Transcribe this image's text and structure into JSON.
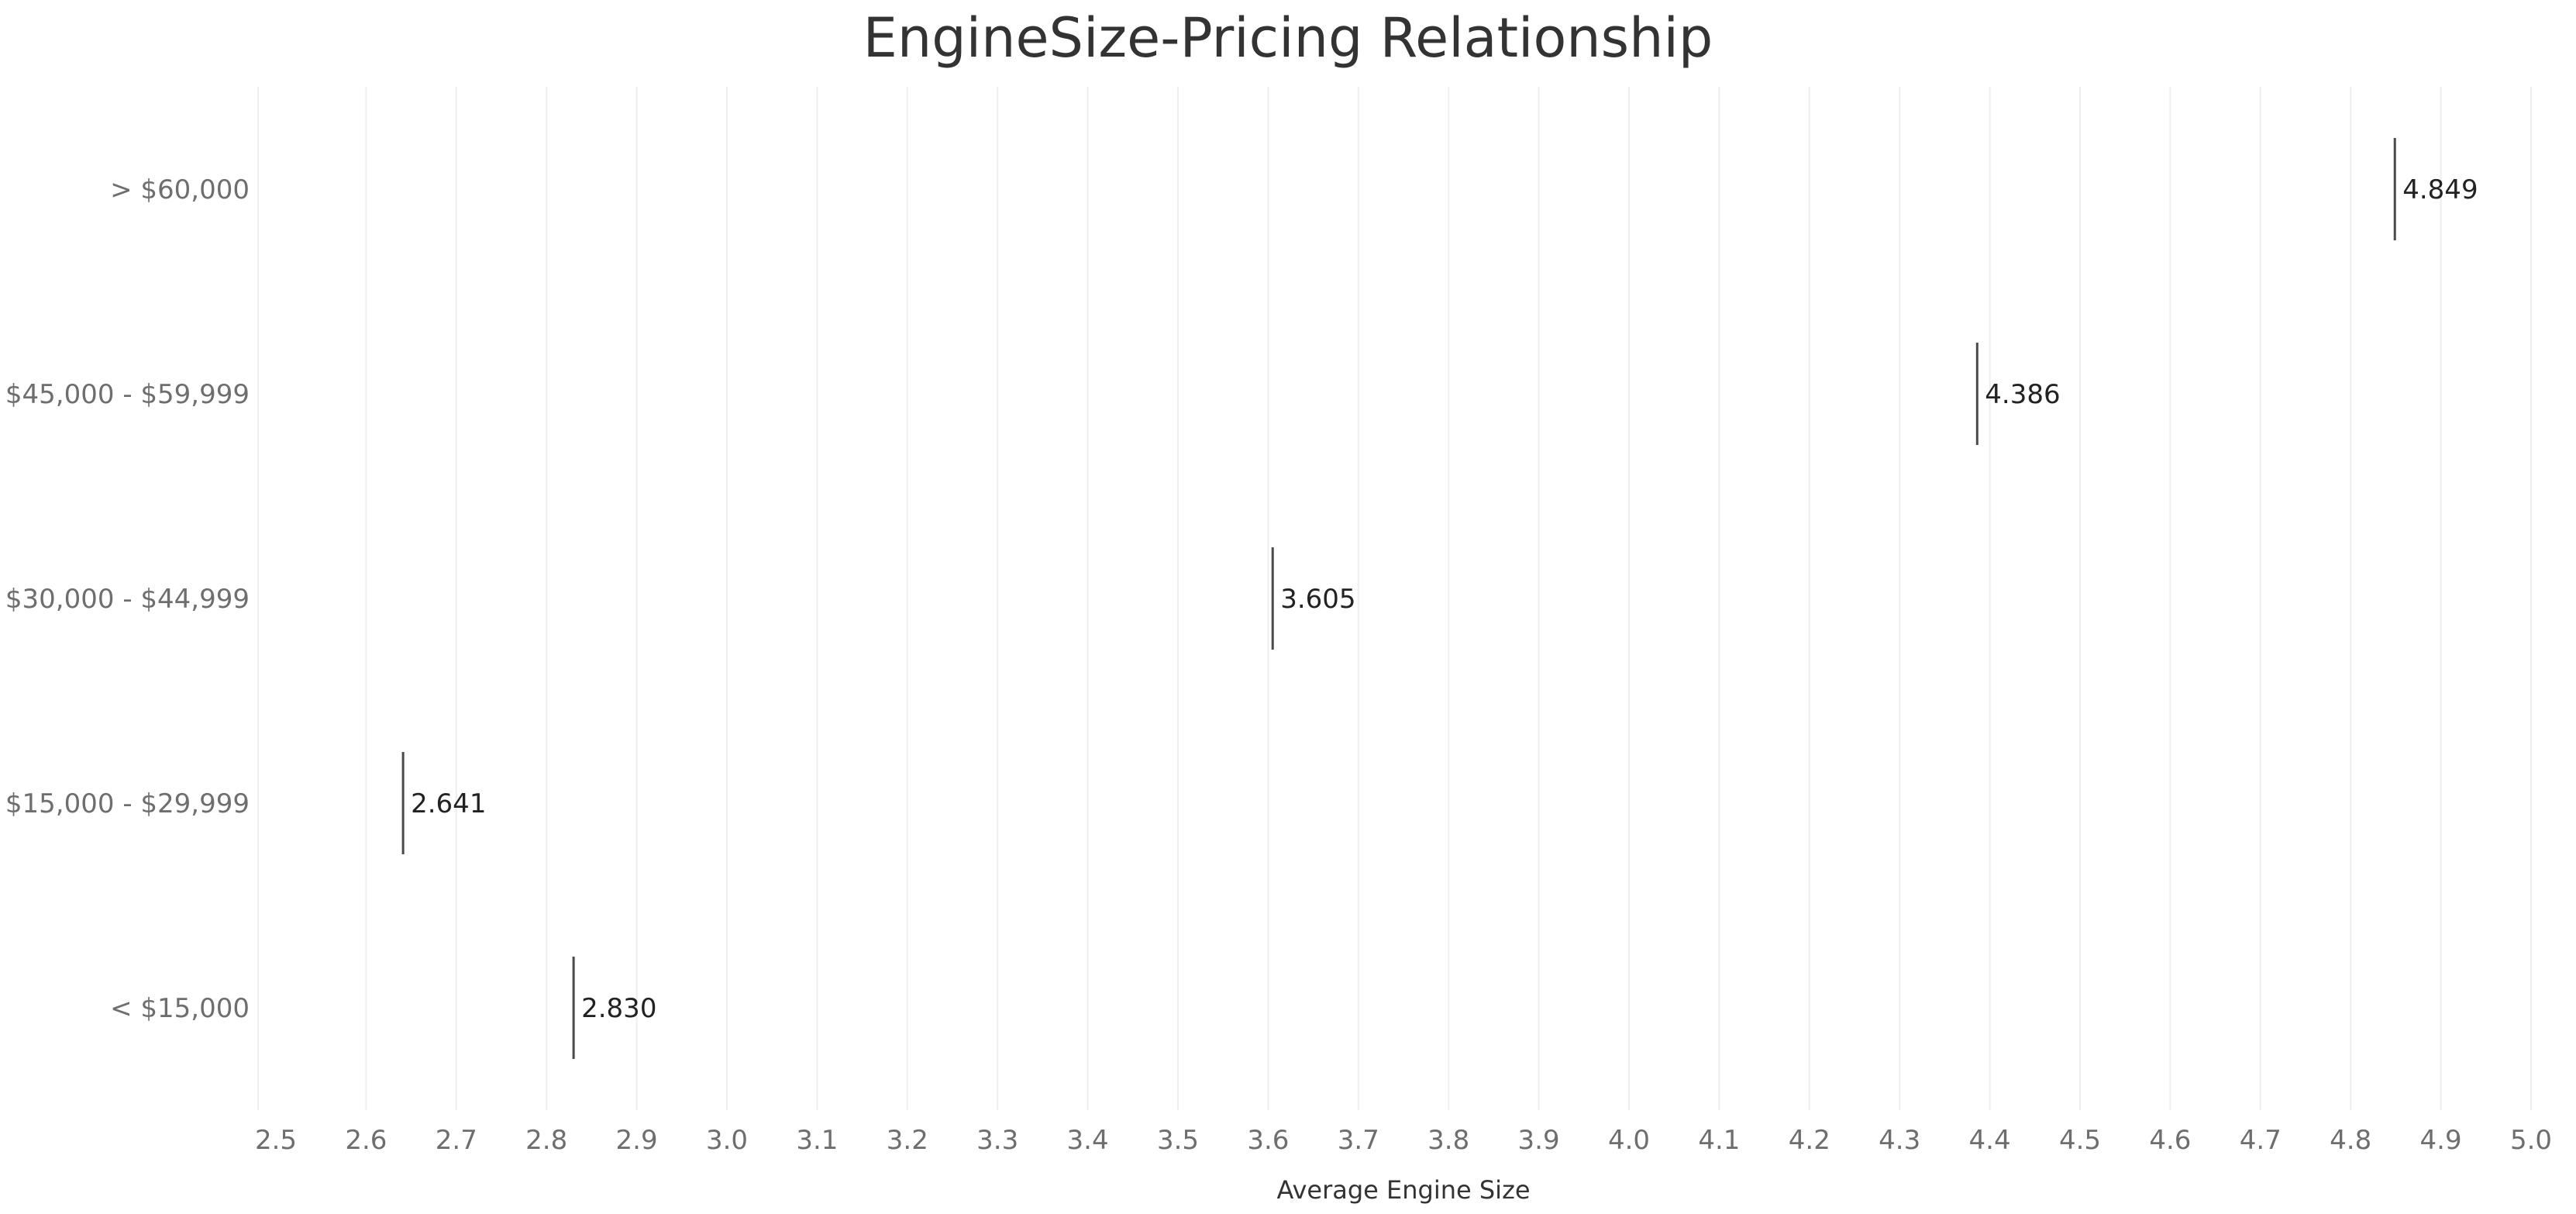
{
  "chart_data": {
    "type": "scatter",
    "title": "EngineSize-Pricing Relationship",
    "xlabel": "Average Engine Size",
    "ylabel": "",
    "xlim": [
      2.5,
      5.0
    ],
    "xticks": [
      "2.5",
      "2.6",
      "2.7",
      "2.8",
      "2.9",
      "3.0",
      "3.1",
      "3.2",
      "3.3",
      "3.4",
      "3.5",
      "3.6",
      "3.7",
      "3.8",
      "3.9",
      "4.0",
      "4.1",
      "4.2",
      "4.3",
      "4.4",
      "4.5",
      "4.6",
      "4.7",
      "4.8",
      "4.9",
      "5.0"
    ],
    "categories": [
      "> $60,000",
      "$45,000 - $59,999",
      "$30,000 - $44,999",
      "$15,000 - $29,999",
      "< $15,000"
    ],
    "values": [
      4.849,
      4.386,
      3.605,
      2.641,
      2.83
    ],
    "value_labels": [
      "4.849",
      "4.386",
      "3.605",
      "2.641",
      "2.830"
    ],
    "mark": "tick",
    "grid": "vertical",
    "legend": "none",
    "colors": {
      "mark": "#4a4a4a",
      "grid": "#eeeeee",
      "tick_text": "#6e6e6e",
      "label_text": "#222222",
      "title_text": "#333333"
    }
  }
}
